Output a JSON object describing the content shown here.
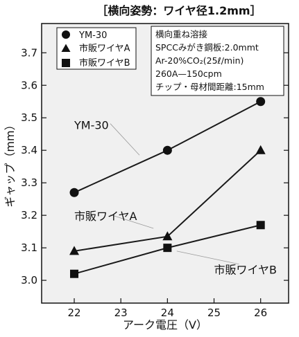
{
  "chart_data": {
    "type": "line",
    "title": "［横向姿勢：ワイヤ径1.2mm］",
    "xlabel": "アーク電圧（V）",
    "ylabel": "ギャップ（mm）",
    "xlim": [
      21.3,
      26.6
    ],
    "ylim": [
      2.93,
      3.79
    ],
    "xticks": [
      "22",
      "23",
      "24",
      "25",
      "26"
    ],
    "yticks": [
      "3.0",
      "3.1",
      "3.2",
      "3.3",
      "3.4",
      "3.5",
      "3.6",
      "3.7"
    ],
    "grid": false,
    "legend_position": "top-left",
    "series": [
      {
        "name": "YM-30",
        "marker": "circle",
        "x": [
          22,
          24,
          26
        ],
        "y": [
          3.27,
          3.4,
          3.55
        ]
      },
      {
        "name": "市販ワイヤA",
        "marker": "triangle",
        "x": [
          22,
          24,
          26
        ],
        "y": [
          3.09,
          3.135,
          3.4
        ]
      },
      {
        "name": "市販ワイヤB",
        "marker": "square",
        "x": [
          22,
          24,
          26
        ],
        "y": [
          3.02,
          3.1,
          3.17
        ]
      }
    ],
    "conditions": [
      "横向重ね溶接",
      "SPCCみがき鋼板:2.0mmt",
      "Ar-20%CO₂(25ℓ/min)",
      "260A—150cpm",
      "チップ・母材間距離:15mm"
    ],
    "annotations": [
      {
        "text": "YM-30",
        "x": 22.0,
        "y": 3.465,
        "points_to": [
          23.4,
          3.385
        ]
      },
      {
        "text": "市販ワイヤA",
        "x": 22.0,
        "y": 3.185,
        "points_to": [
          23.7,
          3.16
        ]
      },
      {
        "text": "市販ワイヤB",
        "x": 25.0,
        "y": 3.02,
        "points_to": [
          24.2,
          3.09
        ]
      }
    ]
  },
  "colors": {
    "plot_bg": "#f0f0f0",
    "line": "#1a1a1a",
    "marker": "#111111",
    "leader": "#999999"
  }
}
